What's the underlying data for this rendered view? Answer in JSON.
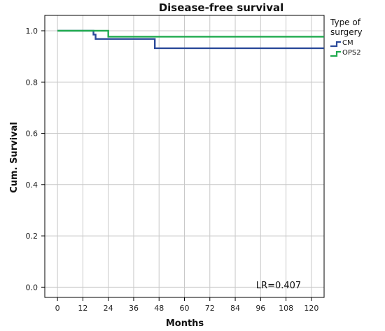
{
  "chart_data": {
    "type": "line",
    "step": true,
    "title": "Disease-free survival",
    "xlabel": "Months",
    "ylabel": "Cum. Survival",
    "xlim": [
      -6,
      126
    ],
    "ylim": [
      -0.04,
      1.06
    ],
    "x_ticks": [
      0,
      12,
      24,
      36,
      48,
      60,
      72,
      84,
      96,
      108,
      120
    ],
    "y_ticks": [
      0.0,
      0.2,
      0.4,
      0.6,
      0.8,
      1.0
    ],
    "y_tick_labels": [
      "0.0",
      "0.2",
      "0.4",
      "0.6",
      "0.8",
      "1.0"
    ],
    "grid": true,
    "legend": {
      "title_lines": [
        "Type of",
        "surgery"
      ],
      "placement": "top-right-outside"
    },
    "series": [
      {
        "name": "CM",
        "color": "#2b4a9a",
        "points": [
          [
            0,
            1.0
          ],
          [
            17,
            1.0
          ],
          [
            17,
            0.985
          ],
          [
            18,
            0.985
          ],
          [
            18,
            0.968
          ],
          [
            46,
            0.968
          ],
          [
            46,
            0.932
          ],
          [
            126,
            0.932
          ]
        ]
      },
      {
        "name": "OPS2",
        "color": "#1faa4e",
        "points": [
          [
            0,
            1.0
          ],
          [
            24,
            1.0
          ],
          [
            24,
            0.977
          ],
          [
            126,
            0.977
          ]
        ]
      }
    ],
    "annotation": "LR=0.407"
  }
}
